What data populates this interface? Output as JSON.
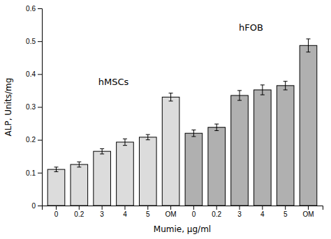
{
  "chart_data": {
    "type": "bar",
    "categories": [
      "0",
      "0.2",
      "3",
      "4",
      "5",
      "OM",
      "0",
      "0.2",
      "3",
      "4",
      "5",
      "OM"
    ],
    "values": [
      0.11,
      0.125,
      0.165,
      0.193,
      0.208,
      0.33,
      0.22,
      0.238,
      0.335,
      0.352,
      0.365,
      0.487
    ],
    "errors": [
      0.007,
      0.008,
      0.008,
      0.01,
      0.008,
      0.012,
      0.01,
      0.01,
      0.015,
      0.015,
      0.013,
      0.02
    ],
    "colors": [
      "#dcdcdc",
      "#dcdcdc",
      "#dcdcdc",
      "#dcdcdc",
      "#dcdcdc",
      "#dcdcdc",
      "#b0b0b0",
      "#b0b0b0",
      "#b0b0b0",
      "#b0b0b0",
      "#b0b0b0",
      "#b0b0b0"
    ],
    "xlabel": "Mumie, μg/ml",
    "ylabel": "ALP, Units/mg",
    "ylim": [
      0,
      0.6
    ],
    "yticks": [
      0,
      0.1,
      0.2,
      0.3,
      0.4,
      0.5,
      0.6
    ],
    "annotations": [
      "hMSCs",
      "hFOB"
    ]
  }
}
